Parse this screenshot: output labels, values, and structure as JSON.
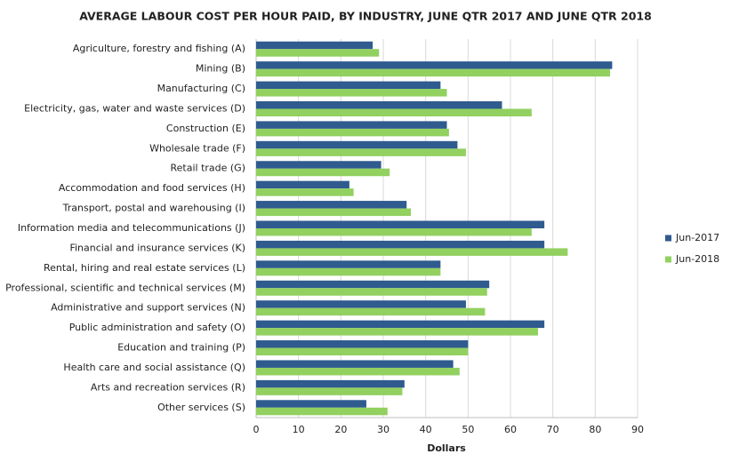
{
  "chart_data": {
    "type": "hbar",
    "title": "AVERAGE LABOUR COST PER HOUR PAID, BY INDUSTRY, JUNE QTR 2017 AND JUNE QTR 2018",
    "x_label": "Dollars",
    "categories": [
      "Agriculture, forestry and fishing (A)",
      "Mining (B)",
      "Manufacturing (C)",
      "Electricity, gas, water and waste services (D)",
      "Construction (E)",
      "Wholesale trade (F)",
      "Retail trade (G)",
      "Accommodation and food services (H)",
      "Transport, postal and warehousing (I)",
      "Information media and telecommunications (J)",
      "Financial and insurance services (K)",
      "Rental, hiring and real estate services (L)",
      "Professional, scientific and technical services (M)",
      "Administrative and support services (N)",
      "Public administration and safety (O)",
      "Education and training (P)",
      "Health care and social assistance (Q)",
      "Arts and recreation services (R)",
      "Other services (S)"
    ],
    "series": [
      {
        "name": "Jun-2017",
        "color": "#2f5b8f",
        "values": [
          27.5,
          84,
          43.5,
          58,
          45,
          47.5,
          29.5,
          22,
          35.5,
          68,
          68,
          43.5,
          55,
          49.5,
          68,
          50,
          46.5,
          35,
          26
        ]
      },
      {
        "name": "Jun-2018",
        "color": "#92d05f",
        "values": [
          29,
          83.5,
          45,
          65,
          45.5,
          49.5,
          31.5,
          23,
          36.5,
          65,
          73.5,
          43.5,
          54.5,
          54,
          66.5,
          50,
          48,
          34.5,
          31
        ]
      }
    ],
    "xlim": [
      0,
      90
    ],
    "xticks": [
      0,
      10,
      20,
      30,
      40,
      50,
      60,
      70,
      80,
      90
    ],
    "grid": true,
    "legend": "right"
  }
}
